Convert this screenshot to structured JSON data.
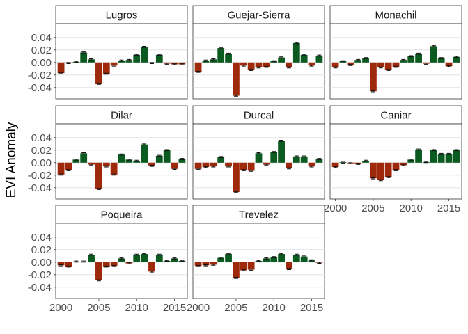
{
  "chart_data": {
    "type": "bar",
    "title": "",
    "xlabel": "",
    "ylabel": "EVI Anomaly",
    "layout": "faceted 3 columns x 3 rows, shared axes",
    "xlim": [
      1999.3,
      2016.7
    ],
    "ylim": [
      -0.058,
      0.062
    ],
    "x_ticks": [
      2000,
      2005,
      2010,
      2015
    ],
    "y_ticks": [
      -0.04,
      -0.02,
      0.0,
      0.02,
      0.04
    ],
    "y_tick_labels": [
      "-0.04",
      "-0.02",
      "0.00",
      "0.02",
      "0.04"
    ],
    "grid": true,
    "colors": {
      "positive": "#0b5a1f",
      "negative": "#9e2a0b"
    },
    "years": [
      2000,
      2001,
      2002,
      2003,
      2004,
      2005,
      2006,
      2007,
      2008,
      2009,
      2010,
      2011,
      2012,
      2013,
      2014,
      2015,
      2016
    ],
    "facets": [
      {
        "name": "Lugros",
        "values": [
          -0.017,
          -0.001,
          0.001,
          0.016,
          0.005,
          -0.034,
          -0.018,
          -0.005,
          0.003,
          0.004,
          0.012,
          0.025,
          -0.001,
          0.012,
          -0.002,
          -0.003,
          -0.003
        ]
      },
      {
        "name": "Guejar-Sierra",
        "values": [
          -0.015,
          0.003,
          0.005,
          0.023,
          0.014,
          -0.053,
          -0.005,
          -0.012,
          -0.008,
          -0.007,
          0.002,
          0.008,
          -0.008,
          0.031,
          0.012,
          -0.005,
          0.011
        ]
      },
      {
        "name": "Monachil",
        "values": [
          -0.008,
          0.002,
          -0.004,
          0.004,
          0.007,
          -0.046,
          -0.008,
          -0.012,
          -0.007,
          0.004,
          0.01,
          0.014,
          -0.002,
          0.026,
          0.007,
          -0.006,
          0.009
        ]
      },
      {
        "name": "Dilar",
        "values": [
          -0.019,
          -0.012,
          0.005,
          0.015,
          -0.003,
          -0.042,
          -0.006,
          -0.019,
          0.013,
          0.005,
          0.003,
          0.029,
          -0.005,
          0.011,
          0.02,
          -0.01,
          0.006
        ]
      },
      {
        "name": "Durcal",
        "values": [
          -0.01,
          -0.007,
          -0.006,
          0.009,
          -0.006,
          -0.047,
          -0.012,
          -0.013,
          0.015,
          -0.003,
          0.017,
          0.035,
          -0.009,
          0.01,
          0.01,
          -0.006,
          0.006
        ]
      },
      {
        "name": "Caniar",
        "values": [
          -0.007,
          0.0,
          -0.001,
          -0.002,
          0.003,
          -0.025,
          -0.028,
          -0.023,
          -0.012,
          -0.004,
          0.005,
          0.021,
          0.001,
          0.02,
          0.014,
          0.014,
          0.02
        ]
      },
      {
        "name": "Poqueira",
        "values": [
          -0.005,
          -0.007,
          0.001,
          0.001,
          0.012,
          -0.029,
          -0.007,
          -0.006,
          0.006,
          -0.002,
          0.012,
          0.013,
          -0.015,
          0.012,
          0.002,
          0.006,
          0.002
        ]
      },
      {
        "name": "Trevelez",
        "values": [
          -0.006,
          -0.005,
          -0.004,
          0.007,
          0.013,
          -0.025,
          -0.013,
          -0.012,
          0.002,
          0.006,
          0.008,
          0.013,
          -0.011,
          0.012,
          0.009,
          0.003,
          -0.001
        ]
      }
    ]
  }
}
